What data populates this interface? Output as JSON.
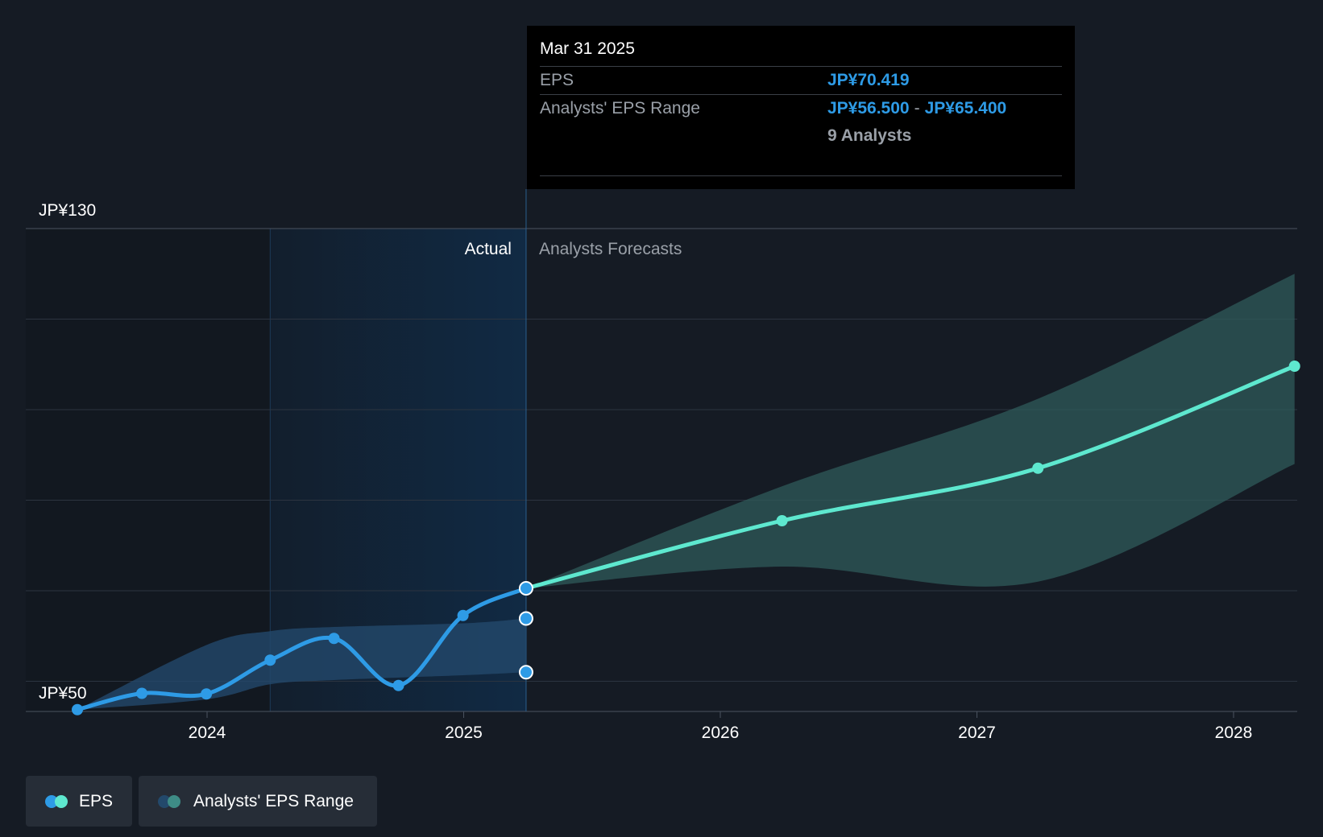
{
  "tooltip": {
    "date": "Mar 31 2025",
    "eps_label": "EPS",
    "eps_value": "JP¥70.419",
    "range_label": "Analysts' EPS Range",
    "range_low": "JP¥56.500",
    "range_sep": "-",
    "range_high": "JP¥65.400",
    "analysts": "9 Analysts"
  },
  "legend": {
    "eps_label": "EPS",
    "range_label": "Analysts' EPS Range"
  },
  "colors": {
    "background": "#151b24",
    "eps_actual": "#2e9be6",
    "eps_forecast": "#5ee8cf",
    "range_forecast": "#2f5b5a",
    "range_actual": "#23496b",
    "actual_region": "#112a44"
  },
  "chart_data": {
    "type": "line",
    "y_unit": "JP¥",
    "ylim": [
      50,
      130
    ],
    "yticks": [
      {
        "value": 130,
        "label": "JP¥130"
      },
      {
        "value": 50,
        "label": "JP¥50"
      }
    ],
    "xticks": [
      "2024",
      "2025",
      "2026",
      "2027",
      "2028"
    ],
    "section_labels": {
      "actual": "Actual",
      "forecast": "Analysts Forecasts"
    },
    "divider_date": "2025-03-31",
    "series": [
      {
        "name": "EPS",
        "kind": "actual",
        "x": [
          "2023-06-30",
          "2023-09-30",
          "2023-12-31",
          "2024-03-31",
          "2024-06-30",
          "2024-09-30",
          "2024-12-31",
          "2025-03-31"
        ],
        "y": [
          50.3,
          53.0,
          52.9,
          58.5,
          62.1,
          54.3,
          65.9,
          70.4
        ]
      },
      {
        "name": "EPS",
        "kind": "forecast",
        "x": [
          "2025-03-31",
          "2026-03-31",
          "2027-03-31",
          "2028-03-31"
        ],
        "y": [
          70.4,
          81.6,
          90.3,
          107.2
        ]
      },
      {
        "name": "Analysts' EPS Range",
        "kind": "actual",
        "x": [
          "2023-06-30",
          "2023-12-31",
          "2024-03-31",
          "2024-06-30",
          "2024-12-31",
          "2025-03-31"
        ],
        "low": [
          50.3,
          52.0,
          54.5,
          55.2,
          56.0,
          56.5
        ],
        "high": [
          50.3,
          61.0,
          63.3,
          64.0,
          64.6,
          65.4
        ]
      },
      {
        "name": "Analysts' EPS Range",
        "kind": "forecast",
        "x": [
          "2025-03-31",
          "2026-03-31",
          "2027-03-31",
          "2028-03-31"
        ],
        "low": [
          70.4,
          74.0,
          71.5,
          91.0
        ],
        "high": [
          70.4,
          87.3,
          101.8,
          122.5
        ]
      }
    ]
  }
}
